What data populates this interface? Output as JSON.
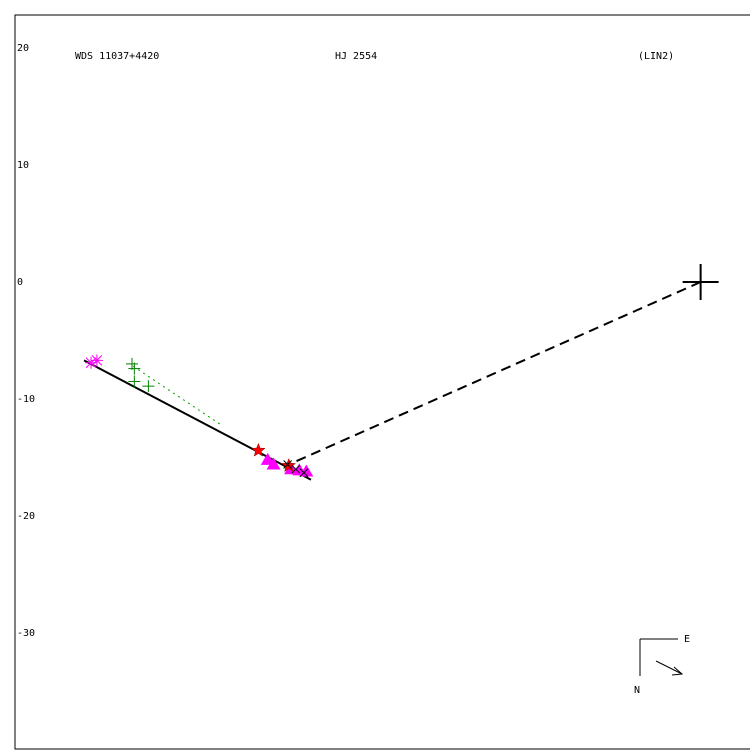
{
  "header": {
    "left": "WDS 11037+4420",
    "center": "HJ 2554",
    "right": "(LIN2)"
  },
  "colors": {
    "frame": "#000000",
    "fit_line": "#000000",
    "residual_dotted": "#00a000",
    "green_plus": "#008000",
    "magenta": "#ff00ff",
    "red_star": "#ff0000"
  },
  "chart_data": {
    "type": "scatter",
    "title": "",
    "xlabel": "",
    "ylabel": "",
    "ylim": [
      -40.4,
      22.4
    ],
    "xlim": [
      -1.2,
      62.8
    ],
    "y_ticks": [
      20,
      10,
      0,
      -10,
      -20,
      -30
    ],
    "y_tick_labels": [
      "20",
      "10",
      "0",
      "-10",
      "-20",
      "-30"
    ],
    "grid": false,
    "primary": {
      "x": 57.4,
      "y": 0,
      "marker": "large-plus"
    },
    "fit_line": [
      [
        4.7,
        -6.7
      ],
      [
        24.1,
        -16.9
      ]
    ],
    "separation_line": [
      [
        57.4,
        0
      ],
      [
        22.2,
        -15.6
      ]
    ],
    "green_residual": [
      [
        8.9,
        -7.2
      ],
      [
        16.4,
        -12.2
      ]
    ],
    "magenta_asterisks": [
      [
        5.3,
        -6.9
      ],
      [
        5.8,
        -6.7
      ]
    ],
    "green_plus": [
      [
        8.8,
        -7.0
      ],
      [
        9.0,
        -7.4
      ],
      [
        9.0,
        -8.5
      ],
      [
        10.2,
        -8.9
      ]
    ],
    "red_stars": [
      [
        19.6,
        -14.4
      ],
      [
        22.2,
        -15.7
      ]
    ],
    "magenta_triangles": [
      [
        20.4,
        -15.2
      ],
      [
        20.9,
        -15.6
      ],
      [
        22.4,
        -16.0
      ],
      [
        23.1,
        -16.1
      ],
      [
        23.7,
        -16.2
      ]
    ],
    "black_crosses": [
      [
        22.1,
        -15.6
      ],
      [
        22.8,
        -16.0
      ],
      [
        23.5,
        -16.3
      ]
    ],
    "orientation": {
      "east": "E",
      "north": "N"
    }
  }
}
